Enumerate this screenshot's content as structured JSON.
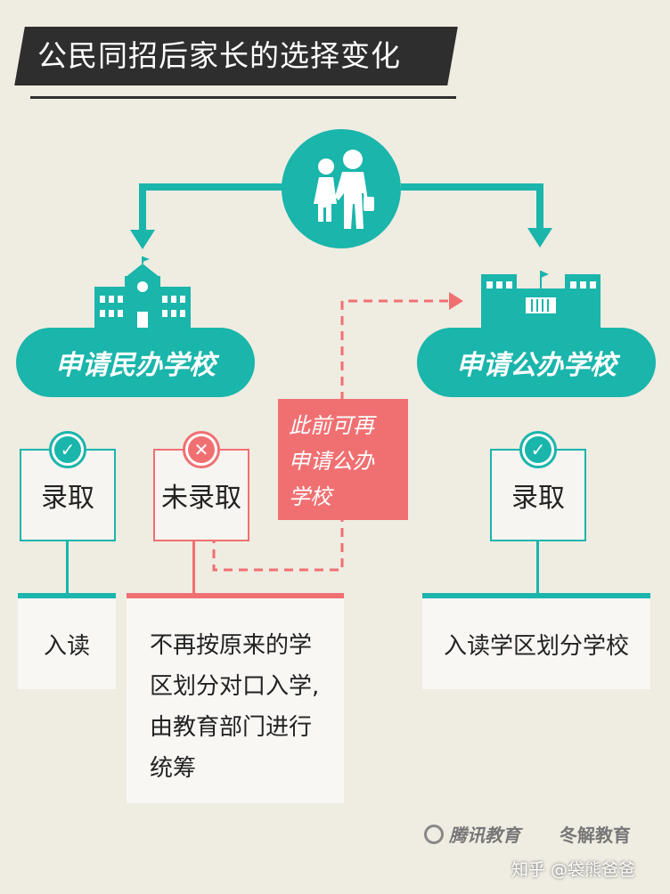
{
  "title": "公民同招后家长的选择变化",
  "left": {
    "label": "申请民办学校",
    "accepted": {
      "label": "录取",
      "outcome": "入读"
    },
    "rejected": {
      "label": "未录取",
      "outcome_lines": [
        "不再按原来的学",
        "区划分对口入学,",
        "由教育部门进行",
        "统筹"
      ]
    }
  },
  "note_lines": [
    "此前可再",
    "申请公办",
    "学校"
  ],
  "right": {
    "label": "申请公办学校",
    "accepted": {
      "label": "录取",
      "outcome": "入读学区划分学校"
    }
  },
  "footer": {
    "logo1": "腾讯教育",
    "logo2": "冬解教育",
    "credit": "知乎 @袋熊爸爸"
  },
  "colors": {
    "teal": "#1ab5ab",
    "coral": "#f07072",
    "dark": "#2e2e2e",
    "background": "#efece2"
  },
  "icons": [
    "parents-child-icon",
    "private-school-building-icon",
    "public-school-building-icon",
    "check-icon",
    "cross-icon"
  ]
}
